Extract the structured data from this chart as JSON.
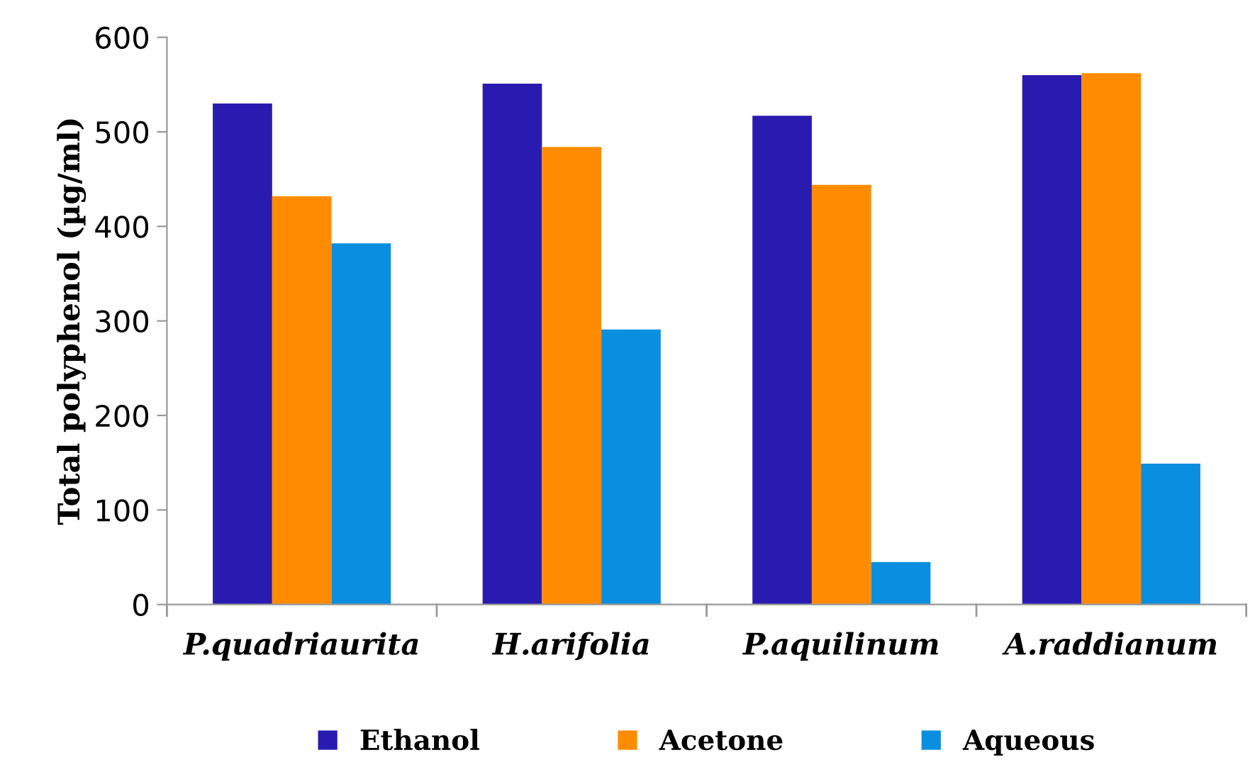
{
  "chart_data": {
    "type": "bar",
    "ylabel": "Total polyphenol (µg/ml)",
    "categories": [
      "P.quadriaurita",
      "H.arifolia",
      "P.aquilinum",
      "A.raddianum"
    ],
    "series": [
      {
        "name": "Ethanol",
        "color": "#2a1bb0",
        "values": [
          530,
          551,
          517,
          560
        ]
      },
      {
        "name": "Acetone",
        "color": "#ff8c00",
        "values": [
          432,
          484,
          444,
          562
        ]
      },
      {
        "name": "Aqueous",
        "color": "#0a8fe0",
        "values": [
          382,
          291,
          45,
          149
        ]
      }
    ],
    "ylim": [
      0,
      600
    ],
    "yticks": [
      0,
      100,
      200,
      300,
      400,
      500,
      600
    ],
    "grid": false,
    "legend": "bottom"
  }
}
